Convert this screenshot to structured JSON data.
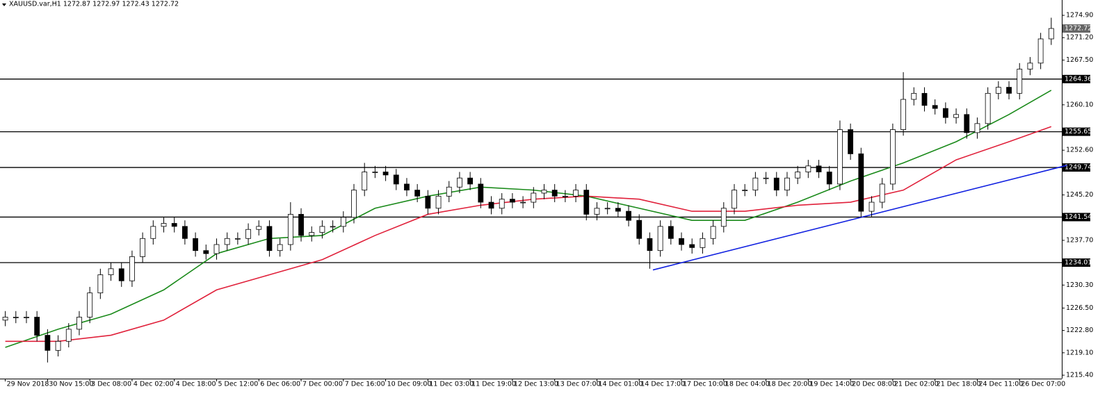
{
  "chart_data": {
    "type": "candlestick",
    "title": "XAUUSD.var,H1  1272.87 1272.97 1272.43 1272.72",
    "x": [
      "29 Nov 2018",
      null,
      null,
      null,
      "30 Nov 15:00",
      null,
      null,
      null,
      "3 Dec 08:00",
      null,
      null,
      null,
      "4 Dec 02:00",
      null,
      null,
      null,
      "4 Dec 18:00",
      null,
      null,
      null,
      "5 Dec 12:00",
      null,
      null,
      null,
      "6 Dec 06:00",
      null,
      null,
      null,
      "7 Dec 00:00",
      null,
      null,
      null,
      "7 Dec 16:00",
      null,
      null,
      null,
      "10 Dec 09:00",
      null,
      null,
      null,
      "11 Dec 03:00",
      null,
      null,
      null,
      "11 Dec 19:00",
      null,
      null,
      null,
      "12 Dec 13:00",
      null,
      null,
      null,
      "13 Dec 07:00",
      null,
      null,
      null,
      "14 Dec 01:00",
      null,
      null,
      null,
      "14 Dec 17:00",
      null,
      null,
      null,
      "17 Dec 10:00",
      null,
      null,
      null,
      "18 Dec 04:00",
      null,
      null,
      null,
      "18 Dec 20:00",
      null,
      null,
      null,
      "19 Dec 14:00",
      null,
      null,
      null,
      "20 Dec 08:00",
      null,
      null,
      null,
      "21 Dec 02:00",
      null,
      null,
      null,
      "21 Dec 18:00",
      null,
      null,
      null,
      "24 Dec 11:00",
      null,
      null,
      null,
      "26 Dec 07:00",
      null,
      null,
      null
    ],
    "open": [
      1224.5,
      1225,
      1225,
      1225,
      1222,
      1219.5,
      1221,
      1223,
      1225,
      1229,
      1232,
      1233,
      1231,
      1235,
      1238,
      1240,
      1240.5,
      1240,
      1238,
      1236,
      1235.5,
      1237,
      1238,
      1238,
      1239.5,
      1240,
      1236,
      1237,
      1242,
      1238.5,
      1239,
      1240,
      1240,
      1241.5,
      1246,
      1249,
      1249,
      1248.5,
      1247,
      1246,
      1245,
      1243,
      1245,
      1246.5,
      1248,
      1247,
      1244,
      1243,
      1244.5,
      1244,
      1244,
      1245.5,
      1246,
      1245,
      1245,
      1246,
      1242,
      1243,
      1243,
      1242.5,
      1241,
      1238,
      1236,
      1240,
      1238,
      1237,
      1236.5,
      1238,
      1240,
      1243,
      1246,
      1246,
      1248,
      1248,
      1246,
      1248,
      1249,
      1250,
      1249,
      1247,
      1256,
      1252,
      1242.5,
      1244,
      1247,
      1256,
      1261,
      1262,
      1260,
      1259.5,
      1258,
      1258.5,
      1255.5,
      1257,
      1262,
      1263,
      1262,
      1266,
      1267,
      1271
    ],
    "high": [
      1226,
      1226,
      1226,
      1226,
      1223,
      1222,
      1224,
      1226,
      1230,
      1233,
      1234,
      1234,
      1236,
      1239,
      1241,
      1241.5,
      1241.5,
      1241,
      1239,
      1237,
      1238,
      1239,
      1239,
      1240.5,
      1241,
      1241,
      1238,
      1244,
      1243,
      1240,
      1241,
      1241,
      1242.5,
      1247,
      1250.5,
      1250,
      1250,
      1249.5,
      1248,
      1247,
      1246,
      1246,
      1247.5,
      1249,
      1249,
      1248,
      1245,
      1245.5,
      1245.5,
      1245,
      1246.5,
      1247,
      1247,
      1246,
      1247,
      1247,
      1244,
      1244,
      1244,
      1243.5,
      1242,
      1239,
      1241,
      1241,
      1239,
      1238,
      1239,
      1241,
      1244,
      1247,
      1247,
      1249,
      1249,
      1249,
      1249,
      1250,
      1251,
      1251,
      1250,
      1257.5,
      1257,
      1253,
      1245,
      1248,
      1257,
      1265.5,
      1263,
      1263,
      1261,
      1260.5,
      1259.5,
      1259.5,
      1258,
      1263,
      1264,
      1264,
      1267,
      1268,
      1272,
      1274.5
    ],
    "low": [
      1223.5,
      1224,
      1224,
      1221,
      1217.5,
      1218.5,
      1220,
      1222,
      1224,
      1228,
      1231,
      1230,
      1230,
      1234,
      1237,
      1239,
      1239,
      1237,
      1235,
      1234.5,
      1234.5,
      1236,
      1237,
      1237,
      1238.5,
      1235,
      1235,
      1236,
      1237.5,
      1237.5,
      1238,
      1239,
      1239,
      1240.5,
      1245,
      1248,
      1247.5,
      1246,
      1245,
      1244,
      1242,
      1242,
      1244,
      1245.5,
      1246,
      1243,
      1242,
      1242,
      1243,
      1243,
      1243,
      1244.5,
      1244,
      1244,
      1244,
      1241,
      1241,
      1242,
      1241.5,
      1240,
      1237,
      1233,
      1235,
      1237,
      1236,
      1235.5,
      1235.5,
      1237,
      1239,
      1242,
      1245,
      1245,
      1247,
      1245,
      1245,
      1247,
      1248,
      1248,
      1246,
      1246,
      1251,
      1241.5,
      1241.5,
      1243,
      1246,
      1255,
      1260,
      1259,
      1258.5,
      1257,
      1257,
      1254.5,
      1254.5,
      1256,
      1261,
      1261,
      1261,
      1265,
      1266,
      1270
    ],
    "close": [
      1225,
      1225,
      1225,
      1222,
      1219.5,
      1221,
      1223,
      1225,
      1229,
      1232,
      1233,
      1231,
      1235,
      1238,
      1240,
      1240.5,
      1240,
      1238,
      1236,
      1235.5,
      1237,
      1238,
      1238,
      1239.5,
      1240,
      1236,
      1237,
      1242,
      1238.5,
      1239,
      1240,
      1240,
      1241.5,
      1246,
      1249,
      1249,
      1248.5,
      1247,
      1246,
      1245,
      1243,
      1245,
      1246.5,
      1248,
      1247,
      1244,
      1243,
      1244.5,
      1244,
      1244,
      1245.5,
      1246,
      1245,
      1245,
      1246,
      1242,
      1243,
      1243,
      1242.5,
      1241,
      1238,
      1236,
      1240,
      1238,
      1237,
      1236.5,
      1238,
      1240,
      1243,
      1246,
      1246,
      1248,
      1248,
      1246,
      1248,
      1249,
      1250,
      1249,
      1247,
      1256,
      1252,
      1242.5,
      1244,
      1247,
      1256,
      1261,
      1262,
      1260,
      1259.5,
      1258,
      1258.5,
      1255.5,
      1257,
      1262,
      1263,
      1262,
      1266,
      1267,
      1271,
      1272.72
    ],
    "xlim": [
      -0.5,
      100
    ],
    "ylim": [
      1214.83,
      1277.43
    ],
    "yticks": [
      {
        "value": 1274.9,
        "label": "1274.90"
      },
      {
        "value": 1271.2,
        "label": "1271.20"
      },
      {
        "value": 1267.5,
        "label": "1267.50"
      },
      {
        "value": 1260.1,
        "label": "1260.10"
      },
      {
        "value": 1252.6,
        "label": "1252.60"
      },
      {
        "value": 1245.2,
        "label": "1245.20"
      },
      {
        "value": 1237.7,
        "label": "1237.70"
      },
      {
        "value": 1230.3,
        "label": "1230.30"
      },
      {
        "value": 1226.5,
        "label": "1226.50"
      },
      {
        "value": 1222.8,
        "label": "1222.80"
      },
      {
        "value": 1219.1,
        "label": "1219.10"
      },
      {
        "value": 1215.4,
        "label": "1215.40"
      }
    ],
    "lines": [
      {
        "color": "#1a8a1a",
        "x": [
          0,
          5,
          10,
          15,
          20,
          25,
          30,
          35,
          40,
          45,
          50,
          55,
          60,
          65,
          70,
          75,
          80,
          85,
          90,
          95,
          99
        ],
        "values": [
          1220,
          1223,
          1225.5,
          1229.5,
          1235.5,
          1238,
          1238.5,
          1243,
          1245,
          1246.5,
          1246,
          1245,
          1243,
          1241,
          1241,
          1244,
          1247.5,
          1250.5,
          1254,
          1258.5,
          1262.5
        ]
      },
      {
        "color": "#e0203a",
        "x": [
          0,
          5,
          10,
          15,
          20,
          25,
          30,
          35,
          40,
          45,
          50,
          55,
          60,
          65,
          70,
          75,
          80,
          85,
          90,
          95,
          99
        ],
        "values": [
          1221,
          1221,
          1222,
          1224.5,
          1229.5,
          1232,
          1234.5,
          1238.5,
          1242,
          1243.5,
          1244.5,
          1245,
          1244.5,
          1242.5,
          1242.5,
          1243.5,
          1244,
          1246,
          1251,
          1254,
          1256.5
        ]
      },
      {
        "color": "#1020e0",
        "x": [
          61.3,
          100.5
        ],
        "values": [
          1232.8,
          1250.1
        ]
      }
    ],
    "levels": [
      1264.36,
      1255.65,
      1249.74,
      1241.54,
      1234.01
    ],
    "last_price": 1272.72,
    "up_color": "#ffffff",
    "down_color": "#000000"
  }
}
